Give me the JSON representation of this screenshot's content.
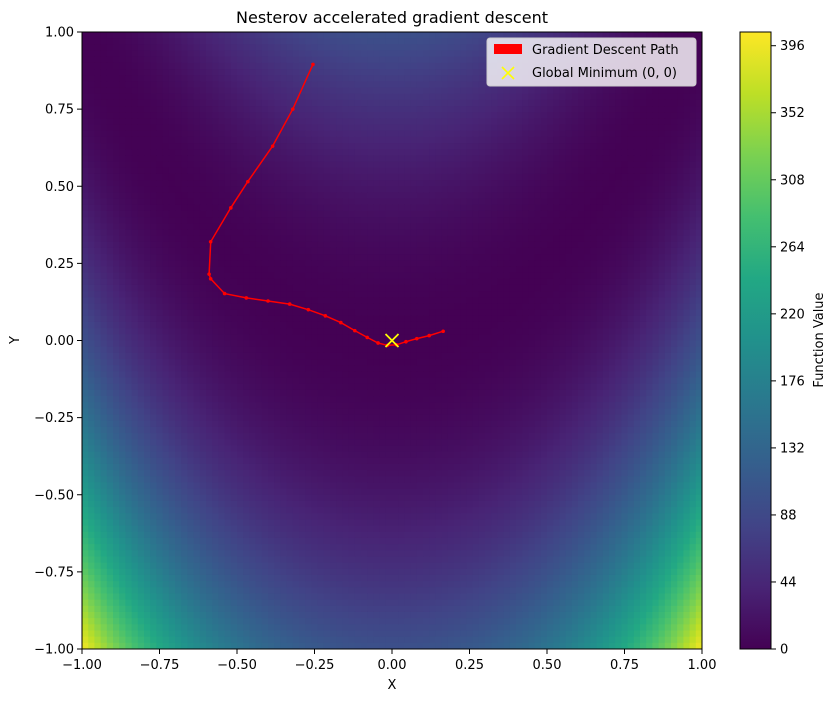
{
  "chart_data": {
    "type": "heatmap",
    "title": "Nesterov accelerated gradient descent",
    "xlabel": "X",
    "ylabel": "Y",
    "xlim": [
      -1.0,
      1.0
    ],
    "ylim": [
      -1.0,
      1.0
    ],
    "x_ticks": [
      "−1.00",
      "−0.75",
      "−0.50",
      "−0.25",
      "0.00",
      "0.25",
      "0.50",
      "0.75",
      "1.00"
    ],
    "y_ticks": [
      "−1.00",
      "−0.75",
      "−0.50",
      "−0.25",
      "0.00",
      "0.25",
      "0.50",
      "0.75",
      "1.00"
    ],
    "colorbar": {
      "label": "Function Value",
      "colormap": "viridis",
      "range": [
        0,
        405
      ],
      "ticks": [
        "0",
        "44",
        "88",
        "132",
        "176",
        "220",
        "264",
        "308",
        "352",
        "396"
      ]
    },
    "function": "Rosenbrock-like: (x)^2 + 100*(y - x^2)^2",
    "path": {
      "name": "Gradient Descent Path",
      "color": "#ff0000",
      "x": [
        -0.255,
        -0.32,
        -0.385,
        -0.465,
        -0.52,
        -0.585,
        -0.59,
        -0.585,
        -0.54,
        -0.47,
        -0.4,
        -0.33,
        -0.27,
        -0.215,
        -0.165,
        -0.12,
        -0.08,
        -0.045,
        -0.015,
        0.015,
        0.045,
        0.08,
        0.12,
        0.165
      ],
      "y": [
        0.895,
        0.75,
        0.63,
        0.515,
        0.43,
        0.32,
        0.215,
        0.2,
        0.152,
        0.138,
        0.128,
        0.118,
        0.1,
        0.08,
        0.058,
        0.032,
        0.01,
        -0.008,
        -0.016,
        -0.014,
        -0.004,
        0.006,
        0.016,
        0.03
      ]
    },
    "minimum": {
      "name": "Global Minimum (0, 0)",
      "x": 0.0,
      "y": 0.0,
      "color": "#ffff00",
      "marker": "x"
    },
    "legend": {
      "placement": "top-right",
      "entries": [
        "Gradient Descent Path",
        "Global Minimum (0, 0)"
      ]
    }
  }
}
